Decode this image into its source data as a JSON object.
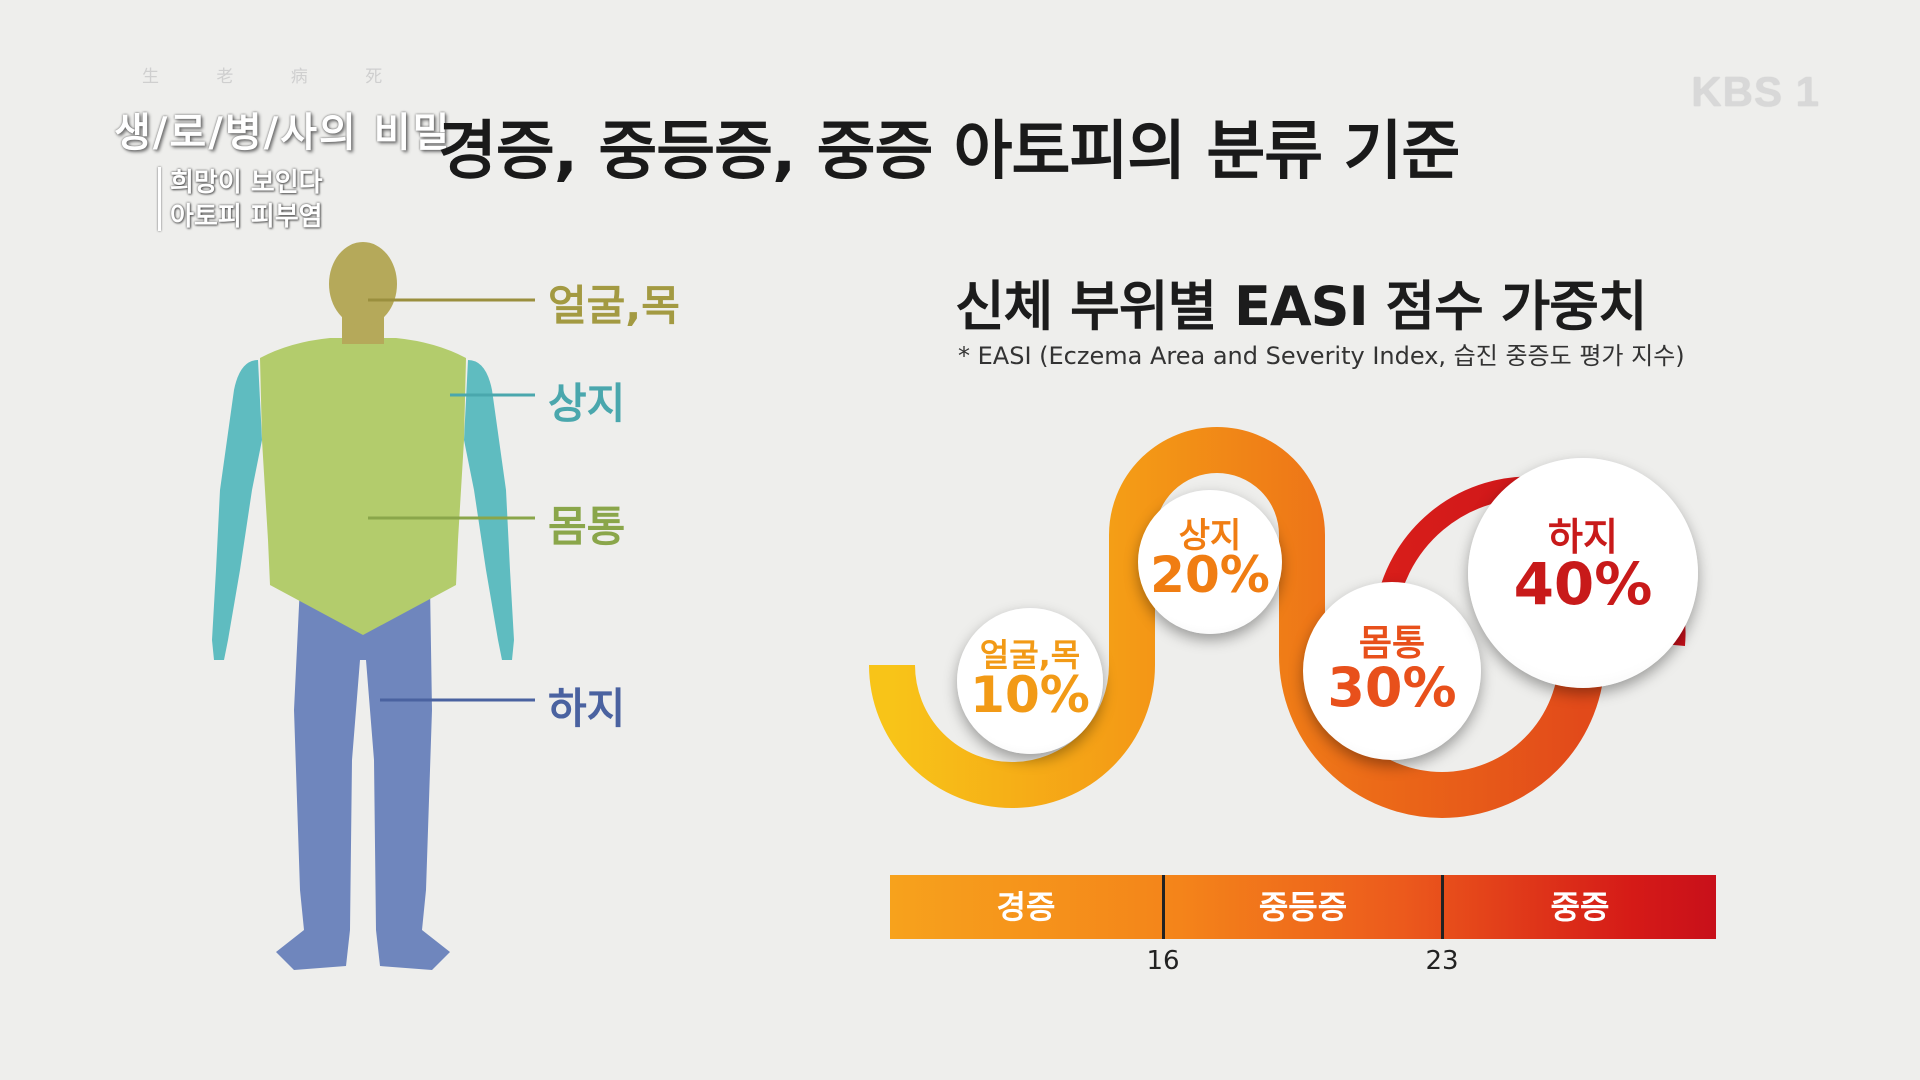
{
  "program": {
    "hanja": "生 老 病 死",
    "title": "생/로/병/사의 비밀",
    "episode_line1": "희망이 보인다",
    "episode_line2": "아토피 피부염"
  },
  "broadcaster": "KBS 1",
  "main_title": "경증, 중등증, 중증 아토피의 분류 기준",
  "sub_title": "신체 부위별 EASI 점수 가중치",
  "footnote": "* EASI (Eczema Area and Severity Index, 습진 중증도 평가 지수)",
  "body_labels": {
    "head": "얼굴,목",
    "arms": "상지",
    "trunk": "몸통",
    "legs": "하지"
  },
  "weights": [
    {
      "name": "얼굴,목",
      "percent": "10%",
      "color": "#f29a16"
    },
    {
      "name": "상지",
      "percent": "20%",
      "color": "#f07d12"
    },
    {
      "name": "몸통",
      "percent": "30%",
      "color": "#e8501b"
    },
    {
      "name": "하지",
      "percent": "40%",
      "color": "#c81a1a"
    }
  ],
  "severity_bar": {
    "segments": [
      "경증",
      "중등증",
      "중증"
    ],
    "thresholds": [
      "16",
      "23"
    ]
  },
  "colors": {
    "head": "#b5a95a",
    "arms": "#5fbcc0",
    "trunk": "#b3cc6c",
    "legs": "#6f86bd",
    "orange": "#f29a16",
    "red": "#c81a1a"
  }
}
